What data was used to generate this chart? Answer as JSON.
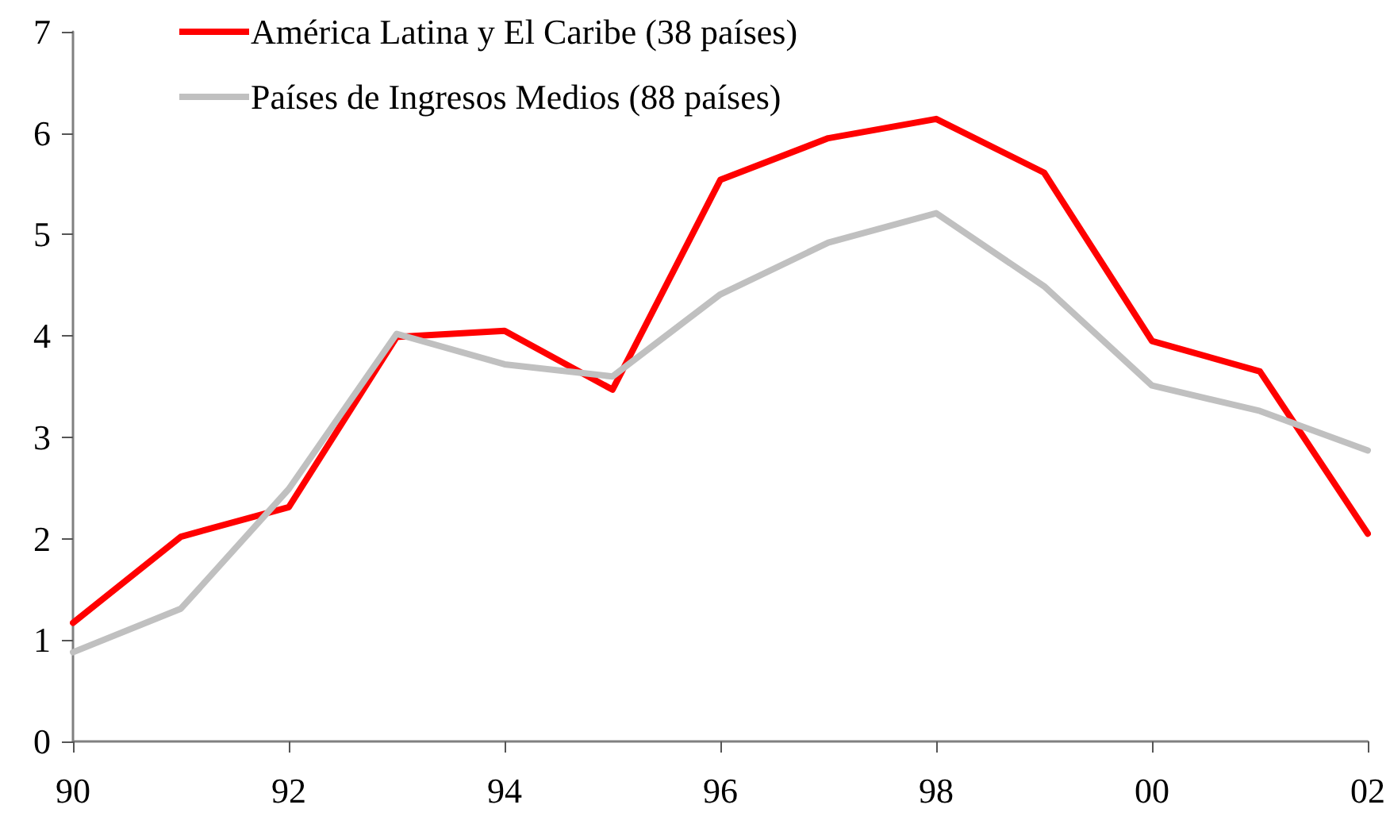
{
  "chart_data": {
    "type": "line",
    "categories": [
      "90",
      null,
      "92",
      null,
      "94",
      null,
      "96",
      null,
      "98",
      null,
      "00",
      null,
      "02"
    ],
    "series": [
      {
        "name": "América Latina y El Caribe (38 países)",
        "color": "#ff0000",
        "values": [
          1.17,
          2.02,
          2.31,
          3.99,
          4.05,
          3.47,
          5.54,
          5.95,
          6.14,
          5.61,
          3.95,
          3.65,
          2.05
        ]
      },
      {
        "name": "Países de Ingresos Medios (88 países)",
        "color": "#c0c0c0",
        "values": [
          0.88,
          1.31,
          2.49,
          4.02,
          3.72,
          3.6,
          4.41,
          4.92,
          5.21,
          4.49,
          3.51,
          3.26,
          2.87
        ]
      }
    ],
    "ylim": [
      0,
      7
    ],
    "yticks": [
      0,
      1,
      2,
      3,
      4,
      5,
      6,
      7
    ],
    "grid": false,
    "legend": "top left",
    "marker": "none",
    "line_style": "solid"
  }
}
